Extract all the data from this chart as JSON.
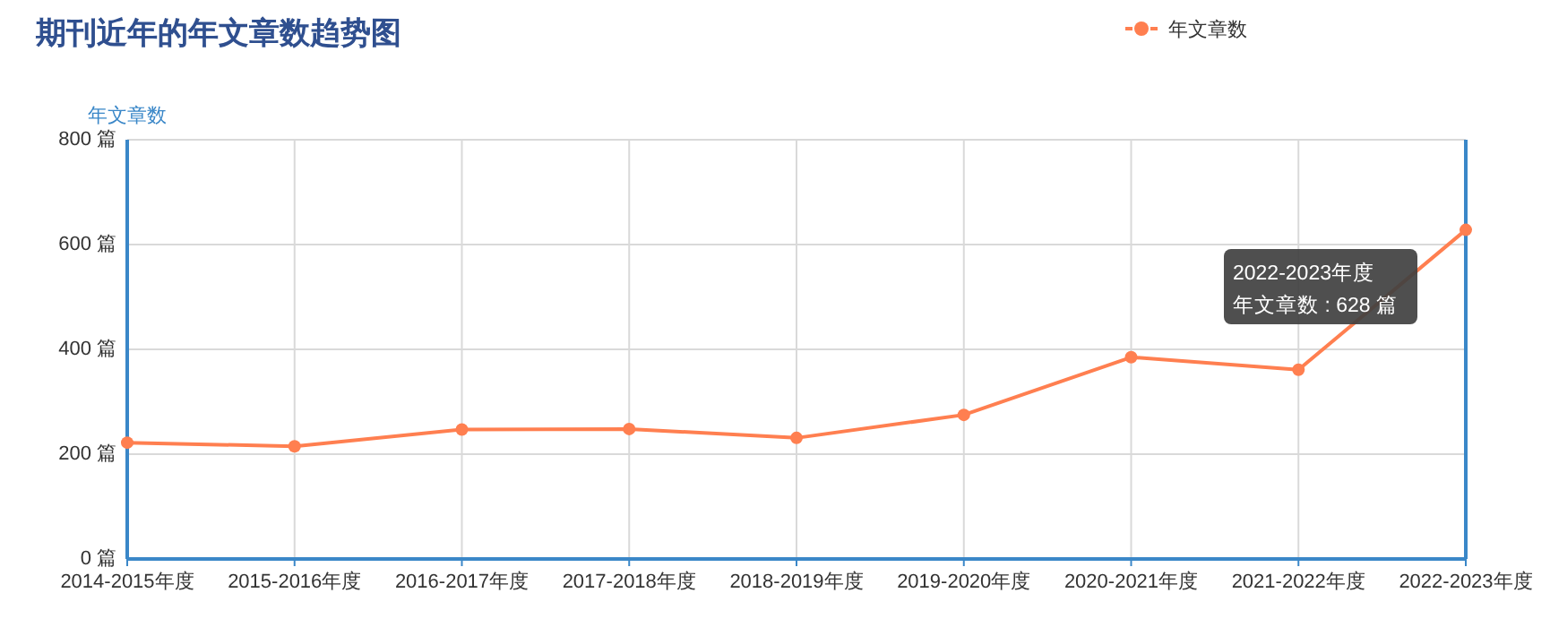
{
  "chart_data": {
    "type": "line",
    "title": "期刊近年的年文章数趋势图",
    "ylabel": "年文章数",
    "categories": [
      "2014-2015年度",
      "2015-2016年度",
      "2016-2017年度",
      "2017-2018年度",
      "2018-2019年度",
      "2019-2020年度",
      "2020-2021年度",
      "2021-2022年度",
      "2022-2023年度"
    ],
    "series": [
      {
        "name": "年文章数",
        "color": "#ff7f50",
        "values": [
          222,
          215,
          247,
          248,
          231,
          275,
          385,
          361,
          628
        ]
      }
    ],
    "ylim": [
      0,
      800
    ],
    "yticks": [
      {
        "value": 0,
        "label": "0 篇"
      },
      {
        "value": 200,
        "label": "200 篇"
      },
      {
        "value": 400,
        "label": "400 篇"
      },
      {
        "value": 600,
        "label": "600 篇"
      },
      {
        "value": 800,
        "label": "800 篇"
      }
    ],
    "grid": true,
    "legend": "top right",
    "marker": "circle",
    "line_style": "solid",
    "annotations": [
      "2022-2023年度",
      "年文章数 : 628 篇"
    ]
  }
}
